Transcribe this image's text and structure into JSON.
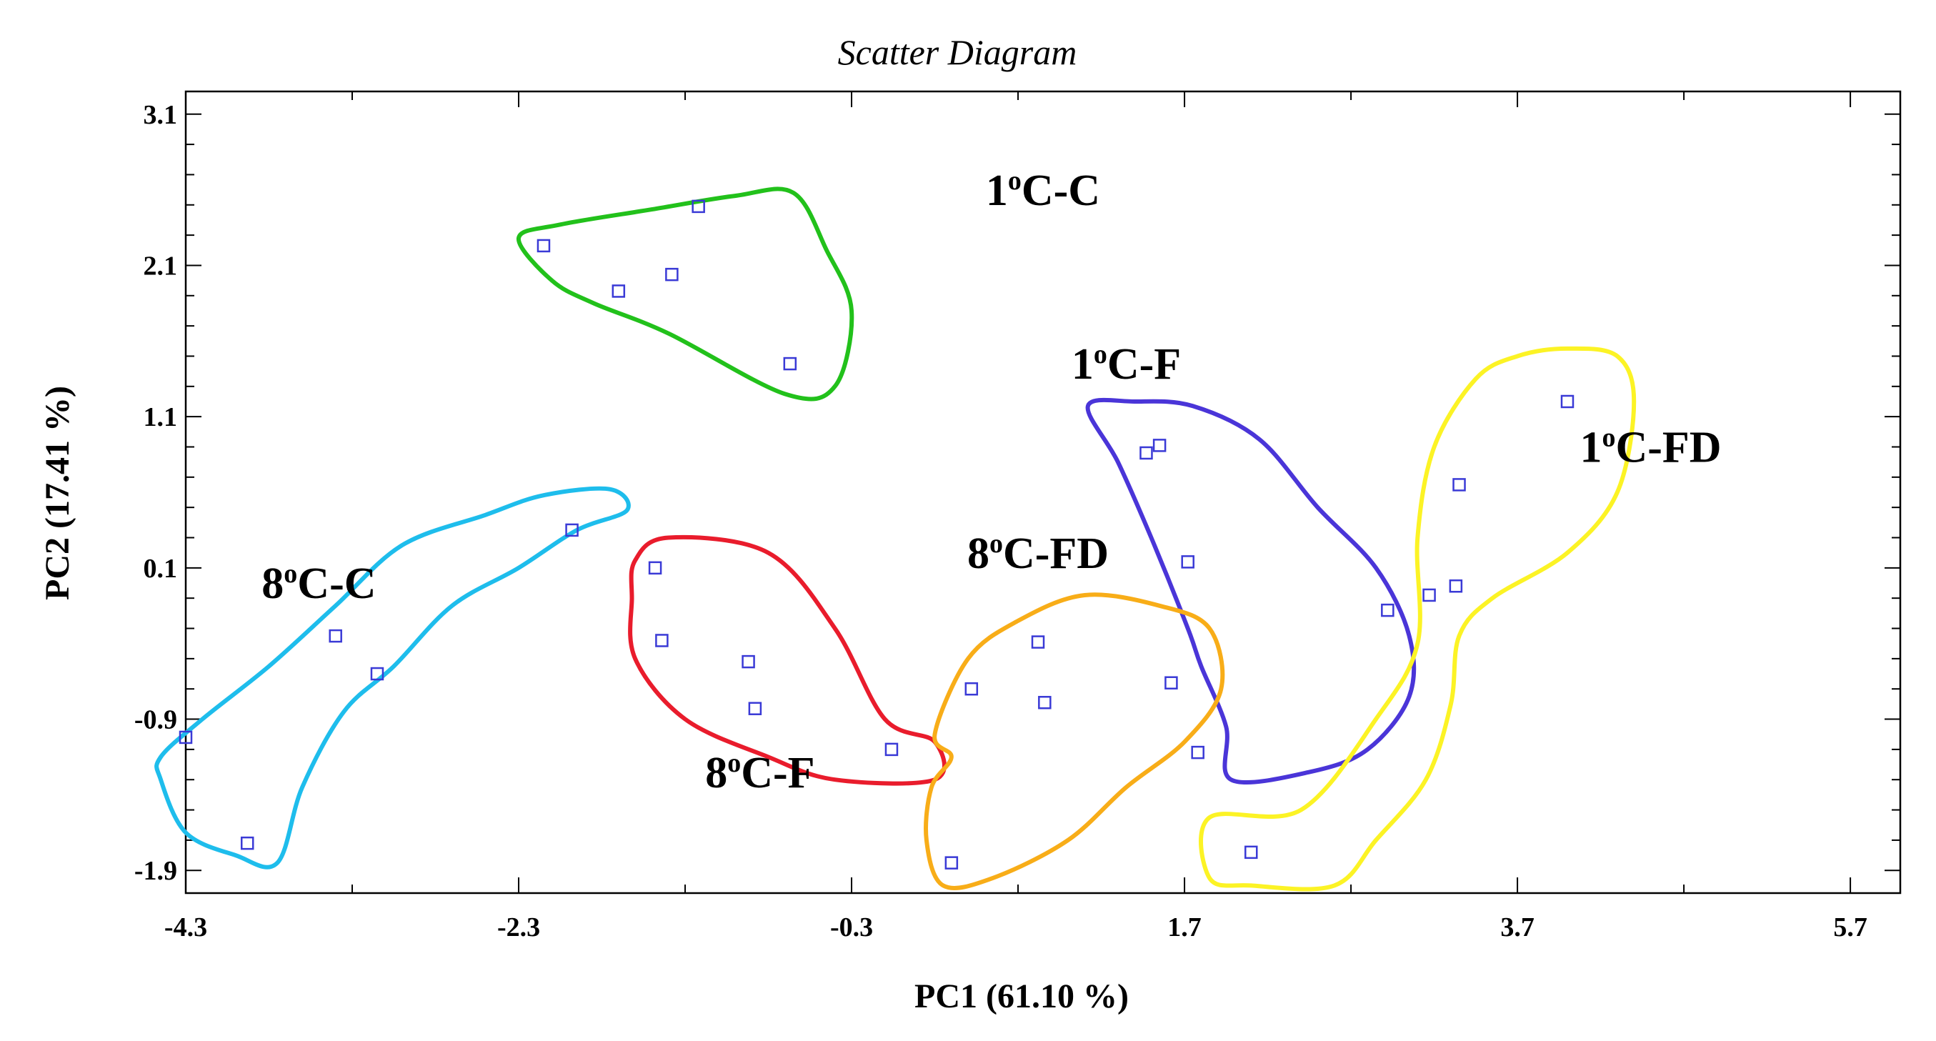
{
  "chart_data": {
    "type": "scatter",
    "title": "Scatter Diagram",
    "xlabel": "PC1 (61.10 %)",
    "ylabel": "PC2 (17.41 %)",
    "xlim": [
      -4.3,
      6.0
    ],
    "ylim": [
      -2.05,
      3.25
    ],
    "x_ticks": [
      -4.3,
      -2.3,
      -0.3,
      1.7,
      3.7,
      5.7
    ],
    "x_tick_labels": [
      "-4.3",
      "-2.3",
      "-0.3",
      "1.7",
      "3.7",
      "5.7"
    ],
    "y_ticks": [
      3.1,
      2.1,
      1.1,
      0.1,
      -0.9,
      -1.9
    ],
    "y_tick_labels": [
      "3.1",
      "2.1",
      "1.1",
      "0.1",
      "-0.9",
      "-1.9"
    ],
    "marker_color": "#3a3ad6",
    "groups": [
      {
        "name": "1oC-C",
        "label_main": "1",
        "label_sup": "o",
        "label_rest": "C-C",
        "color": "#22c11b",
        "label_pos": [
          0.85,
          2.5
        ],
        "points": [
          [
            -2.15,
            2.23
          ],
          [
            -1.7,
            1.93
          ],
          [
            -1.38,
            2.04
          ],
          [
            -1.22,
            2.49
          ],
          [
            -0.67,
            1.45
          ]
        ],
        "hull": [
          [
            -2.3,
            2.28
          ],
          [
            -2.05,
            2.37
          ],
          [
            -1.5,
            2.47
          ],
          [
            -1.0,
            2.56
          ],
          [
            -0.65,
            2.58
          ],
          [
            -0.45,
            2.2
          ],
          [
            -0.3,
            1.8
          ],
          [
            -0.4,
            1.3
          ],
          [
            -0.7,
            1.25
          ],
          [
            -1.4,
            1.65
          ],
          [
            -1.85,
            1.85
          ],
          [
            -2.1,
            2.0
          ],
          [
            -2.3,
            2.28
          ]
        ]
      },
      {
        "name": "1oC-F",
        "label_main": "1",
        "label_sup": "o",
        "label_rest": "C-F",
        "color": "#4a35d8",
        "label_pos": [
          1.35,
          1.35
        ],
        "points": [
          [
            1.47,
            0.86
          ],
          [
            1.55,
            0.91
          ],
          [
            1.72,
            0.14
          ],
          [
            2.92,
            -0.18
          ],
          [
            1.78,
            -1.12
          ],
          [
            2.1,
            -1.78
          ]
        ],
        "hull": [
          [
            1.12,
            1.17
          ],
          [
            1.4,
            1.2
          ],
          [
            1.75,
            1.17
          ],
          [
            2.15,
            0.95
          ],
          [
            2.5,
            0.5
          ],
          [
            2.85,
            0.1
          ],
          [
            3.05,
            -0.35
          ],
          [
            3.05,
            -0.75
          ],
          [
            2.8,
            -1.1
          ],
          [
            2.45,
            -1.25
          ],
          [
            1.98,
            -1.3
          ],
          [
            1.95,
            -0.95
          ],
          [
            1.8,
            -0.55
          ],
          [
            1.72,
            -0.3
          ],
          [
            1.5,
            0.3
          ],
          [
            1.3,
            0.8
          ],
          [
            1.12,
            1.17
          ]
        ]
      },
      {
        "name": "1oC-FD",
        "label_main": "1",
        "label_sup": "o",
        "label_rest": "C-FD",
        "color": "#fcf325",
        "label_pos": [
          4.5,
          0.8
        ],
        "points": [
          [
            4.0,
            1.2
          ],
          [
            3.35,
            0.65
          ],
          [
            3.33,
            -0.02
          ],
          [
            3.17,
            -0.08
          ]
        ],
        "hull": [
          [
            3.45,
            1.35
          ],
          [
            3.7,
            1.5
          ],
          [
            4.0,
            1.55
          ],
          [
            4.3,
            1.5
          ],
          [
            4.4,
            1.2
          ],
          [
            4.3,
            0.6
          ],
          [
            4.0,
            0.2
          ],
          [
            3.55,
            -0.1
          ],
          [
            3.35,
            -0.35
          ],
          [
            3.3,
            -0.8
          ],
          [
            3.15,
            -1.3
          ],
          [
            2.85,
            -1.7
          ],
          [
            2.6,
            -2.0
          ],
          [
            2.1,
            -2.0
          ],
          [
            1.85,
            -1.95
          ],
          [
            1.85,
            -1.55
          ],
          [
            2.4,
            -1.5
          ],
          [
            2.85,
            -0.9
          ],
          [
            3.1,
            -0.4
          ],
          [
            3.1,
            0.3
          ],
          [
            3.2,
            0.9
          ],
          [
            3.45,
            1.35
          ]
        ]
      },
      {
        "name": "8oC-C",
        "label_main": "8",
        "label_sup": "o",
        "label_rest": "C-C",
        "color": "#1ebdec",
        "label_pos": [
          -3.5,
          -0.1
        ],
        "points": [
          [
            -4.3,
            -1.02
          ],
          [
            -3.93,
            -1.72
          ],
          [
            -3.4,
            -0.35
          ],
          [
            -3.15,
            -0.6
          ],
          [
            -1.98,
            0.35
          ]
        ],
        "hull": [
          [
            -4.45,
            -1.15
          ],
          [
            -4.2,
            -0.9
          ],
          [
            -3.8,
            -0.55
          ],
          [
            -3.4,
            -0.15
          ],
          [
            -3.0,
            0.25
          ],
          [
            -2.5,
            0.45
          ],
          [
            -2.15,
            0.58
          ],
          [
            -1.75,
            0.62
          ],
          [
            -1.65,
            0.48
          ],
          [
            -1.95,
            0.35
          ],
          [
            -2.3,
            0.1
          ],
          [
            -2.7,
            -0.15
          ],
          [
            -3.05,
            -0.55
          ],
          [
            -3.35,
            -0.85
          ],
          [
            -3.6,
            -1.35
          ],
          [
            -3.75,
            -1.85
          ],
          [
            -4.0,
            -1.8
          ],
          [
            -4.3,
            -1.65
          ],
          [
            -4.45,
            -1.3
          ],
          [
            -4.45,
            -1.15
          ]
        ]
      },
      {
        "name": "8oC-F",
        "label_main": "8",
        "label_sup": "o",
        "label_rest": "C-F",
        "color": "#e91c2c",
        "label_pos": [
          -0.85,
          -1.35
        ],
        "points": [
          [
            -1.48,
            0.1
          ],
          [
            -1.44,
            -0.38
          ],
          [
            -0.92,
            -0.52
          ],
          [
            -0.88,
            -0.83
          ],
          [
            -0.06,
            -1.1
          ]
        ],
        "hull": [
          [
            -1.6,
            0.15
          ],
          [
            -1.4,
            0.3
          ],
          [
            -0.8,
            0.2
          ],
          [
            -0.4,
            -0.3
          ],
          [
            -0.1,
            -0.9
          ],
          [
            0.2,
            -1.05
          ],
          [
            0.2,
            -1.3
          ],
          [
            -0.4,
            -1.3
          ],
          [
            -0.8,
            -1.15
          ],
          [
            -1.3,
            -0.9
          ],
          [
            -1.6,
            -0.5
          ],
          [
            -1.62,
            -0.1
          ],
          [
            -1.6,
            0.15
          ]
        ]
      },
      {
        "name": "8oC-FD",
        "label_main": "8",
        "label_sup": "o",
        "label_rest": "C-FD",
        "color": "#f8ad18",
        "label_pos": [
          0.82,
          0.1
        ],
        "points": [
          [
            0.3,
            -1.85
          ],
          [
            0.42,
            -0.7
          ],
          [
            0.82,
            -0.39
          ],
          [
            0.86,
            -0.79
          ],
          [
            1.62,
            -0.66
          ]
        ],
        "hull": [
          [
            0.25,
            -2.0
          ],
          [
            0.55,
            -1.95
          ],
          [
            1.0,
            -1.7
          ],
          [
            1.35,
            -1.35
          ],
          [
            1.7,
            -1.05
          ],
          [
            1.92,
            -0.7
          ],
          [
            1.85,
            -0.3
          ],
          [
            1.55,
            -0.15
          ],
          [
            1.1,
            -0.08
          ],
          [
            0.7,
            -0.25
          ],
          [
            0.4,
            -0.5
          ],
          [
            0.2,
            -1.0
          ],
          [
            0.3,
            -1.15
          ],
          [
            0.18,
            -1.35
          ],
          [
            0.15,
            -1.7
          ],
          [
            0.25,
            -2.0
          ]
        ]
      }
    ]
  }
}
